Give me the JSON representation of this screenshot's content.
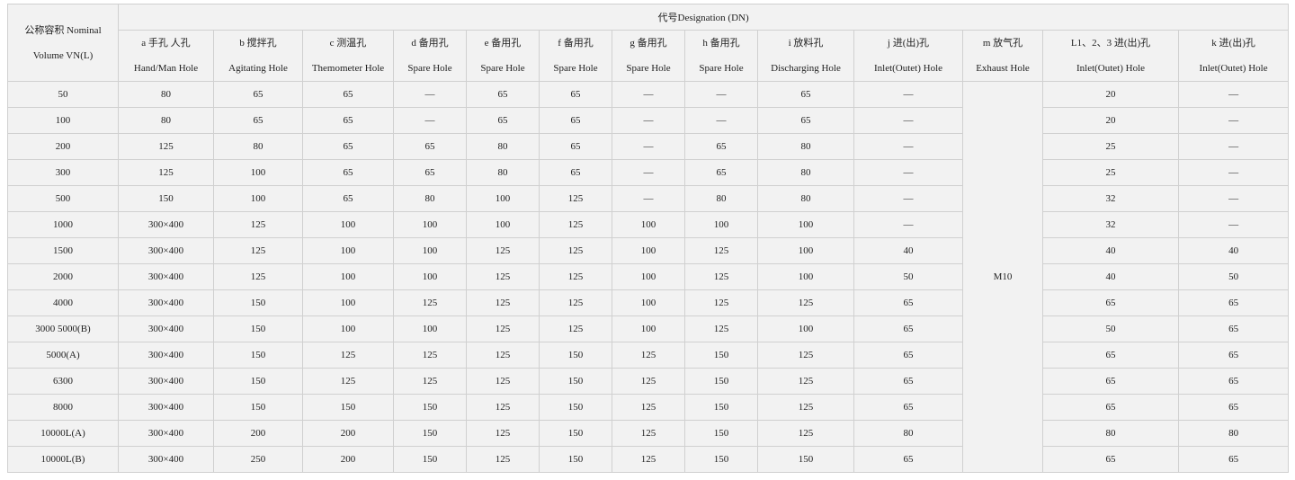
{
  "header": {
    "corner": [
      "公称容积 Nominal",
      "Volume VN(L)"
    ],
    "designation": "代号Designation (DN)",
    "columns": [
      {
        "cn": "a 手孔 人孔",
        "en": "Hand/Man Hole"
      },
      {
        "cn": "b 搅拌孔",
        "en": "Agitating Hole"
      },
      {
        "cn": "c 测温孔",
        "en": "Themometer Hole"
      },
      {
        "cn": "d 备用孔",
        "en": "Spare Hole"
      },
      {
        "cn": "e 备用孔",
        "en": "Spare Hole"
      },
      {
        "cn": "f 备用孔",
        "en": "Spare Hole"
      },
      {
        "cn": "g 备用孔",
        "en": "Spare Hole"
      },
      {
        "cn": "h 备用孔",
        "en": "Spare Hole"
      },
      {
        "cn": "i 放料孔",
        "en": "Discharging Hole"
      },
      {
        "cn": "j 进(出)孔",
        "en": "Inlet(Outet) Hole"
      },
      {
        "cn": "m 放气孔",
        "en": "Exhaust Hole"
      },
      {
        "cn": "L1、2、3 进(出)孔",
        "en": "Inlet(Outet) Hole"
      },
      {
        "cn": "k 进(出)孔",
        "en": "Inlet(Outet) Hole"
      }
    ]
  },
  "m_value": "M10",
  "rows": [
    {
      "vn": "50",
      "a": "80",
      "b": "65",
      "c": "65",
      "d": "—",
      "e": "65",
      "f": "65",
      "g": "—",
      "h": "—",
      "i": "65",
      "j": "—",
      "l": "20",
      "k": "—"
    },
    {
      "vn": "100",
      "a": "80",
      "b": "65",
      "c": "65",
      "d": "—",
      "e": "65",
      "f": "65",
      "g": "—",
      "h": "—",
      "i": "65",
      "j": "—",
      "l": "20",
      "k": "—"
    },
    {
      "vn": "200",
      "a": "125",
      "b": "80",
      "c": "65",
      "d": "65",
      "e": "80",
      "f": "65",
      "g": "—",
      "h": "65",
      "i": "80",
      "j": "—",
      "l": "25",
      "k": "—"
    },
    {
      "vn": "300",
      "a": "125",
      "b": "100",
      "c": "65",
      "d": "65",
      "e": "80",
      "f": "65",
      "g": "—",
      "h": "65",
      "i": "80",
      "j": "—",
      "l": "25",
      "k": "—"
    },
    {
      "vn": "500",
      "a": "150",
      "b": "100",
      "c": "65",
      "d": "80",
      "e": "100",
      "f": "125",
      "g": "—",
      "h": "80",
      "i": "80",
      "j": "—",
      "l": "32",
      "k": "—"
    },
    {
      "vn": "1000",
      "a": "300×400",
      "b": "125",
      "c": "100",
      "d": "100",
      "e": "100",
      "f": "125",
      "g": "100",
      "h": "100",
      "i": "100",
      "j": "—",
      "l": "32",
      "k": "—"
    },
    {
      "vn": "1500",
      "a": "300×400",
      "b": "125",
      "c": "100",
      "d": "100",
      "e": "125",
      "f": "125",
      "g": "100",
      "h": "125",
      "i": "100",
      "j": "40",
      "l": "40",
      "k": "40"
    },
    {
      "vn": "2000",
      "a": "300×400",
      "b": "125",
      "c": "100",
      "d": "100",
      "e": "125",
      "f": "125",
      "g": "100",
      "h": "125",
      "i": "100",
      "j": "50",
      "l": "40",
      "k": "50"
    },
    {
      "vn": "4000",
      "a": "300×400",
      "b": "150",
      "c": "100",
      "d": "125",
      "e": "125",
      "f": "125",
      "g": "100",
      "h": "125",
      "i": "125",
      "j": "65",
      "l": "65",
      "k": "65"
    },
    {
      "vn": "3000  5000(B)",
      "a": "300×400",
      "b": "150",
      "c": "100",
      "d": "100",
      "e": "125",
      "f": "125",
      "g": "100",
      "h": "125",
      "i": "100",
      "j": "65",
      "l": "50",
      "k": "65"
    },
    {
      "vn": "5000(A)",
      "a": "300×400",
      "b": "150",
      "c": "125",
      "d": "125",
      "e": "125",
      "f": "150",
      "g": "125",
      "h": "150",
      "i": "125",
      "j": "65",
      "l": "65",
      "k": "65"
    },
    {
      "vn": "6300",
      "a": "300×400",
      "b": "150",
      "c": "125",
      "d": "125",
      "e": "125",
      "f": "150",
      "g": "125",
      "h": "150",
      "i": "125",
      "j": "65",
      "l": "65",
      "k": "65"
    },
    {
      "vn": "8000",
      "a": "300×400",
      "b": "150",
      "c": "150",
      "d": "150",
      "e": "125",
      "f": "150",
      "g": "125",
      "h": "150",
      "i": "125",
      "j": "65",
      "l": "65",
      "k": "65"
    },
    {
      "vn": "10000L(A)",
      "a": "300×400",
      "b": "200",
      "c": "200",
      "d": "150",
      "e": "125",
      "f": "150",
      "g": "125",
      "h": "150",
      "i": "125",
      "j": "80",
      "l": "80",
      "k": "80"
    },
    {
      "vn": "10000L(B)",
      "a": "300×400",
      "b": "250",
      "c": "200",
      "d": "150",
      "e": "125",
      "f": "150",
      "g": "125",
      "h": "150",
      "i": "150",
      "j": "65",
      "l": "65",
      "k": "65"
    }
  ]
}
